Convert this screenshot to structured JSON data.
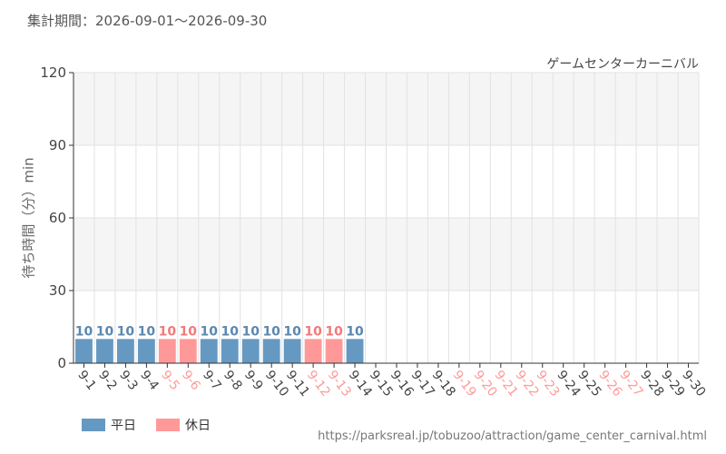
{
  "period_text": "集計期間：2026-09-01～2026-09-30",
  "source_url": "https://parksreal.jp/tobuzoo/attraction/game_center_carnival.html",
  "legend": [
    {
      "label": "平日",
      "color": "#6699c2"
    },
    {
      "label": "休日",
      "color": "#ff9999"
    }
  ],
  "chart_data": {
    "type": "bar",
    "title": "ゲームセンターカーニバル",
    "ylabel": "待ち時間（分）min",
    "xlabel": "",
    "ylim": [
      0,
      120
    ],
    "yticks": [
      0,
      30,
      60,
      90,
      120
    ],
    "grid": true,
    "legend_position": "bottom-left",
    "colors": {
      "weekday": "#6699c2",
      "holiday": "#ff9999",
      "weekday_label": "#5b88b0",
      "holiday_label": "#f07a7a",
      "axis_text": "#444444"
    },
    "categories": [
      "9-1",
      "9-2",
      "9-3",
      "9-4",
      "9-5",
      "9-6",
      "9-7",
      "9-8",
      "9-9",
      "9-10",
      "9-11",
      "9-12",
      "9-13",
      "9-14",
      "9-15",
      "9-16",
      "9-17",
      "9-18",
      "9-19",
      "9-20",
      "9-21",
      "9-22",
      "9-23",
      "9-24",
      "9-25",
      "9-26",
      "9-27",
      "9-28",
      "9-29",
      "9-30"
    ],
    "holiday": [
      false,
      false,
      false,
      false,
      true,
      true,
      false,
      false,
      false,
      false,
      false,
      true,
      true,
      false,
      false,
      false,
      false,
      false,
      true,
      true,
      true,
      true,
      true,
      false,
      false,
      true,
      true,
      false,
      false,
      false
    ],
    "values": [
      10,
      10,
      10,
      10,
      10,
      10,
      10,
      10,
      10,
      10,
      10,
      10,
      10,
      10,
      null,
      null,
      null,
      null,
      null,
      null,
      null,
      null,
      null,
      null,
      null,
      null,
      null,
      null,
      null,
      null
    ]
  }
}
